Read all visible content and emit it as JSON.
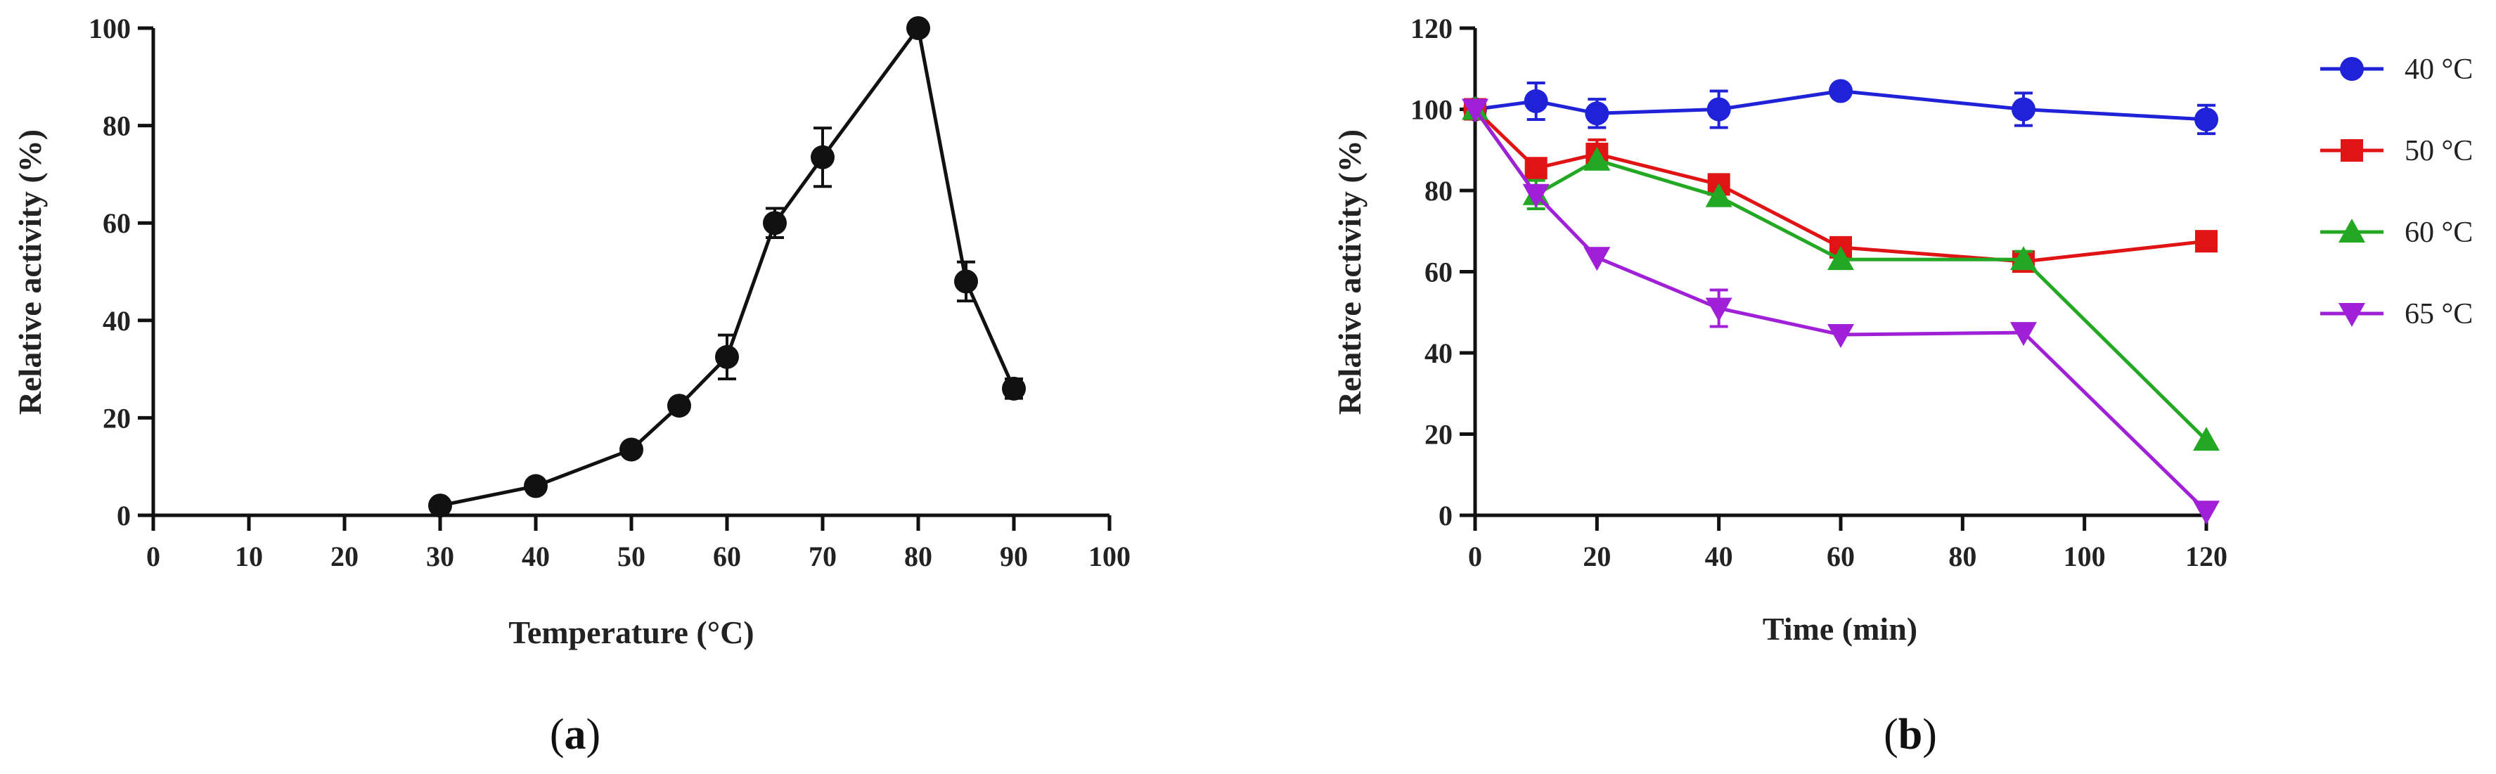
{
  "chart_data": [
    {
      "type": "line",
      "panel_label": "(a)",
      "panel_label_parts": {
        "open": "(",
        "letter": "a",
        "close": ")"
      },
      "xlabel": "Temperature (°C)",
      "ylabel": "Relative activity (%)",
      "xlim": [
        0,
        100
      ],
      "ylim": [
        0,
        100
      ],
      "xticks": [
        0,
        10,
        20,
        30,
        40,
        50,
        60,
        70,
        80,
        90,
        100
      ],
      "yticks": [
        0,
        20,
        40,
        60,
        80,
        100
      ],
      "series": [
        {
          "name": "Relative activity",
          "color": "#111111",
          "marker": "circle",
          "x": [
            30,
            40,
            50,
            55,
            60,
            65,
            70,
            80,
            85,
            90
          ],
          "values": [
            2,
            6,
            13.5,
            22.5,
            32.5,
            60,
            73.5,
            100,
            48,
            26
          ],
          "errors": [
            0,
            0,
            0,
            0,
            4.5,
            3,
            6,
            0,
            4,
            2
          ]
        }
      ]
    },
    {
      "type": "line",
      "panel_label": "(b)",
      "panel_label_parts": {
        "open": "(",
        "letter": "b",
        "close": ")"
      },
      "xlabel": "Time (min)",
      "ylabel": "Relative activity (%)",
      "xlim": [
        0,
        120
      ],
      "ylim": [
        0,
        120
      ],
      "xticks": [
        0,
        20,
        40,
        60,
        80,
        100,
        120
      ],
      "yticks": [
        0,
        20,
        40,
        60,
        80,
        100,
        120
      ],
      "legend_position": "right",
      "series": [
        {
          "name": "40 °C",
          "color": "#1f22d6",
          "marker": "circle",
          "x": [
            0,
            10,
            20,
            40,
            60,
            90,
            120
          ],
          "values": [
            100,
            102,
            99,
            100,
            104.5,
            100,
            97.5
          ],
          "errors": [
            0,
            4.5,
            3.5,
            4.5,
            0,
            4,
            3.5
          ]
        },
        {
          "name": "50 °C",
          "color": "#e01414",
          "marker": "square",
          "x": [
            0,
            10,
            20,
            40,
            60,
            90,
            120
          ],
          "values": [
            100,
            85.5,
            89,
            81.5,
            66,
            62.5,
            67.5
          ],
          "errors": [
            0,
            0,
            3.5,
            0,
            0,
            0,
            0
          ]
        },
        {
          "name": "60 °C",
          "color": "#22a822",
          "marker": "triangle-up",
          "x": [
            0,
            10,
            20,
            40,
            60,
            90,
            120
          ],
          "values": [
            100,
            79,
            87.5,
            78.5,
            63,
            63,
            18.5
          ],
          "errors": [
            0,
            3.5,
            0,
            0,
            0,
            2,
            0
          ]
        },
        {
          "name": "65 °C",
          "color": "#a020d8",
          "marker": "triangle-down",
          "x": [
            0,
            10,
            20,
            40,
            60,
            90,
            120
          ],
          "values": [
            100,
            79,
            63.5,
            51,
            44.5,
            45,
            1
          ],
          "errors": [
            0,
            0,
            0,
            4.5,
            0,
            0,
            0
          ]
        }
      ]
    }
  ]
}
